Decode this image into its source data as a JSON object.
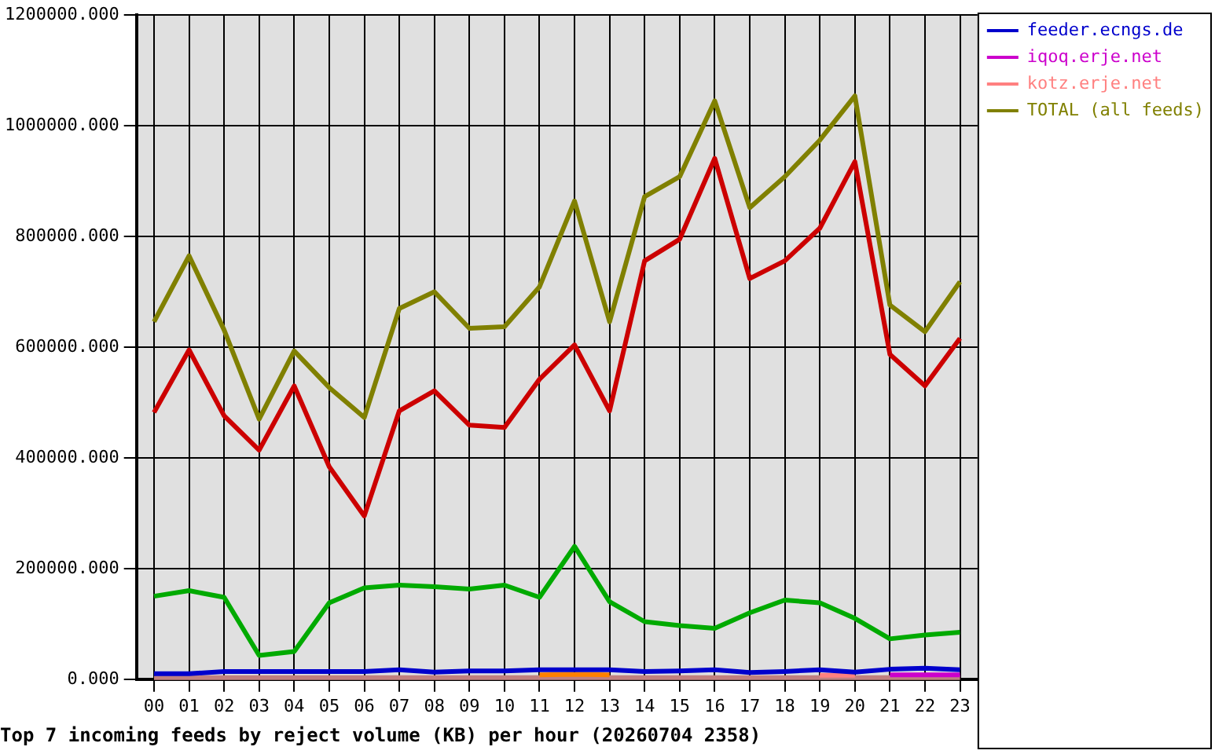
{
  "chart_data": {
    "type": "line",
    "title": "Top 7 incoming feeds by reject volume (KB) per hour (20260704 2358)",
    "categories": [
      "00",
      "01",
      "02",
      "03",
      "04",
      "05",
      "06",
      "07",
      "08",
      "09",
      "10",
      "11",
      "12",
      "13",
      "14",
      "15",
      "16",
      "17",
      "18",
      "19",
      "20",
      "21",
      "22",
      "23"
    ],
    "series": [
      {
        "color": "#cc0000",
        "values": [
          482000,
          595000,
          476000,
          414000,
          530000,
          384000,
          295000,
          485000,
          521000,
          459000,
          455000,
          542000,
          604000,
          485000,
          756000,
          795000,
          941000,
          724000,
          756000,
          815000,
          935000,
          587000,
          530000,
          616000
        ]
      },
      {
        "color": "#00aa00",
        "values": [
          150000,
          160000,
          148000,
          43000,
          50000,
          138000,
          165000,
          170000,
          167000,
          163000,
          170000,
          148000,
          240000,
          140000,
          104000,
          97000,
          92000,
          120000,
          143000,
          138000,
          110000,
          73000,
          80000,
          85000
        ]
      },
      {
        "name": "feeder.ecngs.de",
        "color": "#0000cc",
        "values": [
          10000,
          10000,
          14000,
          14000,
          14000,
          14000,
          14000,
          17000,
          13000,
          15000,
          15000,
          17000,
          17000,
          17000,
          14000,
          15000,
          17000,
          12000,
          14000,
          17000,
          13000,
          18000,
          20000,
          17000
        ]
      },
      {
        "name": "iqoq.erje.net",
        "color": "#cc00cc",
        "values": [
          null,
          null,
          null,
          null,
          null,
          null,
          null,
          null,
          null,
          null,
          null,
          null,
          null,
          null,
          null,
          null,
          null,
          null,
          null,
          null,
          null,
          8000,
          8000,
          8000
        ]
      },
      {
        "name": "kotz.erje.net",
        "color": "#ff8080",
        "values": [
          null,
          null,
          null,
          null,
          null,
          null,
          null,
          null,
          null,
          null,
          null,
          null,
          null,
          null,
          null,
          null,
          null,
          null,
          null,
          7000,
          7000,
          null,
          null,
          null
        ]
      },
      {
        "color": "#ff8000",
        "values": [
          null,
          null,
          null,
          null,
          null,
          null,
          null,
          null,
          null,
          null,
          null,
          8000,
          9000,
          8000,
          null,
          null,
          null,
          null,
          null,
          null,
          null,
          null,
          null,
          null
        ]
      },
      {
        "color": "#c08080",
        "values": [
          3000,
          3000,
          3000,
          3000,
          3000,
          3000,
          3000,
          3000,
          3000,
          3000,
          3000,
          3000,
          3000,
          3000,
          3000,
          3000,
          3000,
          3000,
          3000,
          3000,
          3000,
          3000,
          3000,
          3000
        ]
      },
      {
        "name": "TOTAL (all feeds)",
        "color": "#808000",
        "values": [
          646000,
          765000,
          631000,
          470000,
          593000,
          527000,
          473000,
          670000,
          700000,
          634000,
          637000,
          709000,
          864000,
          646000,
          872000,
          908000,
          1045000,
          852000,
          908000,
          974000,
          1054000,
          676000,
          628000,
          718000
        ]
      }
    ],
    "ylim": [
      0,
      1200000
    ],
    "yticks": [
      {
        "value": 0,
        "label": "0.000"
      },
      {
        "value": 200000,
        "label": "200000.000"
      },
      {
        "value": 400000,
        "label": "400000.000"
      },
      {
        "value": 600000,
        "label": "600000.000"
      },
      {
        "value": 800000,
        "label": "800000.000"
      },
      {
        "value": 1000000,
        "label": "1000000.000"
      },
      {
        "value": 1200000,
        "label": "1200000.000"
      }
    ],
    "grid": true,
    "legend": "top right",
    "marker": "none",
    "line_style": "solid"
  }
}
